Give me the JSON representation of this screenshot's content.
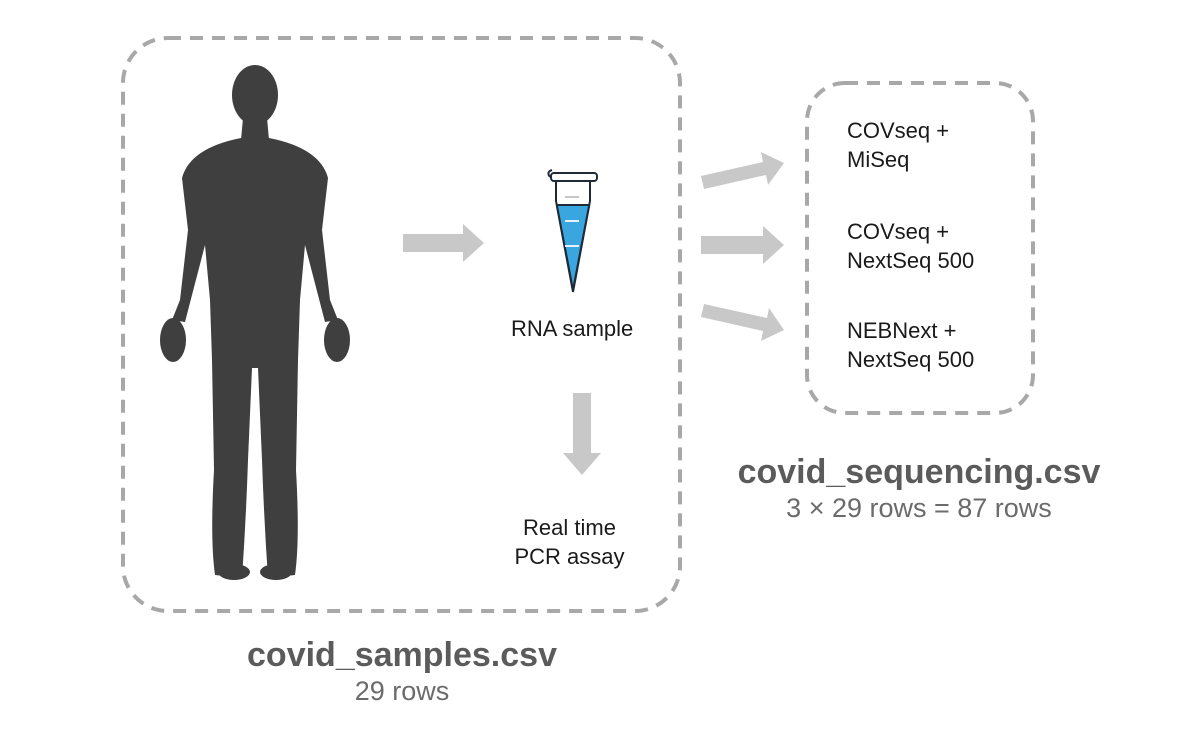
{
  "colors": {
    "silhouette": "#3f3f3f",
    "arrow": "#c8c8c8",
    "dashed_border": "#a8a8a8",
    "tube_liquid": "#3aa6df",
    "tube_outline": "#1f2a36"
  },
  "icons": {
    "person": "human-silhouette-icon",
    "tube": "microcentrifuge-tube-icon"
  },
  "samples_panel": {
    "rna_label": "RNA sample",
    "pcr_label": [
      "Real time",
      "PCR assay"
    ],
    "file_name": "covid_samples.csv",
    "row_count": "29 rows"
  },
  "sequencing_panel": {
    "methods": [
      {
        "line1": "COVseq +",
        "line2": "MiSeq"
      },
      {
        "line1": "COVseq +",
        "line2": "NextSeq 500"
      },
      {
        "line1": "NEBNext +",
        "line2": "NextSeq 500"
      }
    ],
    "file_name": "covid_sequencing.csv",
    "row_count": "3 × 29 rows = 87 rows"
  }
}
